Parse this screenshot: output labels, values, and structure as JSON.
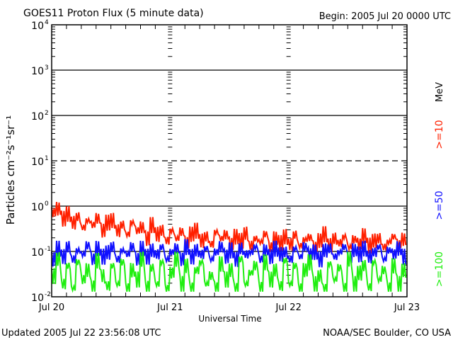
{
  "chart_data": {
    "type": "line",
    "title": "GOES11 Proton Flux (5 minute data)",
    "begin": "Begin: 2005 Jul 20 0000 UTC",
    "xlabel": "Universal Time",
    "ylabel": "Particles cm⁻²s⁻¹sr⁻¹",
    "yscale": "log",
    "ylim": [
      0.01,
      10000
    ],
    "y_ticks": [
      {
        "base": "10",
        "exp": "4"
      },
      {
        "base": "10",
        "exp": "3"
      },
      {
        "base": "10",
        "exp": "2"
      },
      {
        "base": "10",
        "exp": "1"
      },
      {
        "base": "10",
        "exp": "0"
      },
      {
        "base": "10",
        "exp": "-1"
      },
      {
        "base": "10",
        "exp": "-2"
      }
    ],
    "x_ticks": [
      "Jul 20",
      "Jul 21",
      "Jul 22",
      "Jul 23"
    ],
    "xlim_hours": [
      0,
      72
    ],
    "units_label": "MeV",
    "series": [
      {
        "name": ">=10",
        "color": "#ff2000",
        "values": [
          0.75,
          0.9,
          0.55,
          0.7,
          0.45,
          0.6,
          0.35,
          0.5,
          0.4,
          0.55,
          0.3,
          0.45,
          0.5,
          0.3,
          0.4,
          0.25,
          0.45,
          0.3,
          0.35,
          0.2,
          0.4,
          0.25,
          0.3,
          0.18,
          0.3,
          0.2,
          0.28,
          0.16,
          0.25,
          0.3,
          0.18,
          0.22,
          0.15,
          0.28,
          0.2,
          0.24,
          0.15,
          0.22,
          0.18,
          0.26,
          0.14,
          0.2,
          0.17,
          0.25,
          0.13,
          0.2,
          0.16,
          0.22,
          0.15,
          0.24,
          0.14,
          0.19,
          0.21,
          0.13,
          0.18,
          0.25,
          0.14,
          0.2,
          0.16,
          0.22,
          0.13,
          0.19,
          0.15,
          0.23,
          0.14,
          0.18,
          0.2,
          0.13,
          0.17,
          0.22,
          0.15,
          0.19
        ]
      },
      {
        "name": ">=50",
        "color": "#1010ff",
        "values": [
          0.07,
          0.12,
          0.08,
          0.13,
          0.07,
          0.11,
          0.09,
          0.14,
          0.07,
          0.12,
          0.08,
          0.1,
          0.13,
          0.07,
          0.11,
          0.09,
          0.13,
          0.07,
          0.12,
          0.08,
          0.11,
          0.09,
          0.13,
          0.07,
          0.1,
          0.12,
          0.07,
          0.13,
          0.08,
          0.11,
          0.09,
          0.12,
          0.07,
          0.1,
          0.13,
          0.08,
          0.11,
          0.07,
          0.12,
          0.09,
          0.1,
          0.13,
          0.07,
          0.11,
          0.08,
          0.12,
          0.09,
          0.1,
          0.07,
          0.12,
          0.08,
          0.13,
          0.09,
          0.1,
          0.07,
          0.11,
          0.12,
          0.08,
          0.1,
          0.13,
          0.07,
          0.11,
          0.09,
          0.12,
          0.08,
          0.1,
          0.13,
          0.07,
          0.11,
          0.09,
          0.12,
          0.08
        ]
      },
      {
        "name": ">=100",
        "color": "#20ee10",
        "values": [
          0.03,
          0.07,
          0.02,
          0.05,
          0.016,
          0.06,
          0.025,
          0.04,
          0.016,
          0.065,
          0.03,
          0.018,
          0.05,
          0.02,
          0.06,
          0.016,
          0.04,
          0.025,
          0.07,
          0.017,
          0.045,
          0.02,
          0.06,
          0.016,
          0.035,
          0.07,
          0.02,
          0.05,
          0.016,
          0.04,
          0.06,
          0.02,
          0.03,
          0.016,
          0.055,
          0.025,
          0.04,
          0.016,
          0.07,
          0.02,
          0.035,
          0.05,
          0.016,
          0.06,
          0.025,
          0.04,
          0.018,
          0.065,
          0.02,
          0.05,
          0.016,
          0.04,
          0.06,
          0.02,
          0.03,
          0.016,
          0.055,
          0.025,
          0.045,
          0.016,
          0.07,
          0.02,
          0.035,
          0.05,
          0.017,
          0.06,
          0.025,
          0.04,
          0.016,
          0.05,
          0.02,
          0.04
        ]
      }
    ]
  },
  "footer": {
    "updated": "Updated 2005 Jul 22 23:56:08 UTC",
    "source": "NOAA/SEC Boulder, CO USA"
  }
}
